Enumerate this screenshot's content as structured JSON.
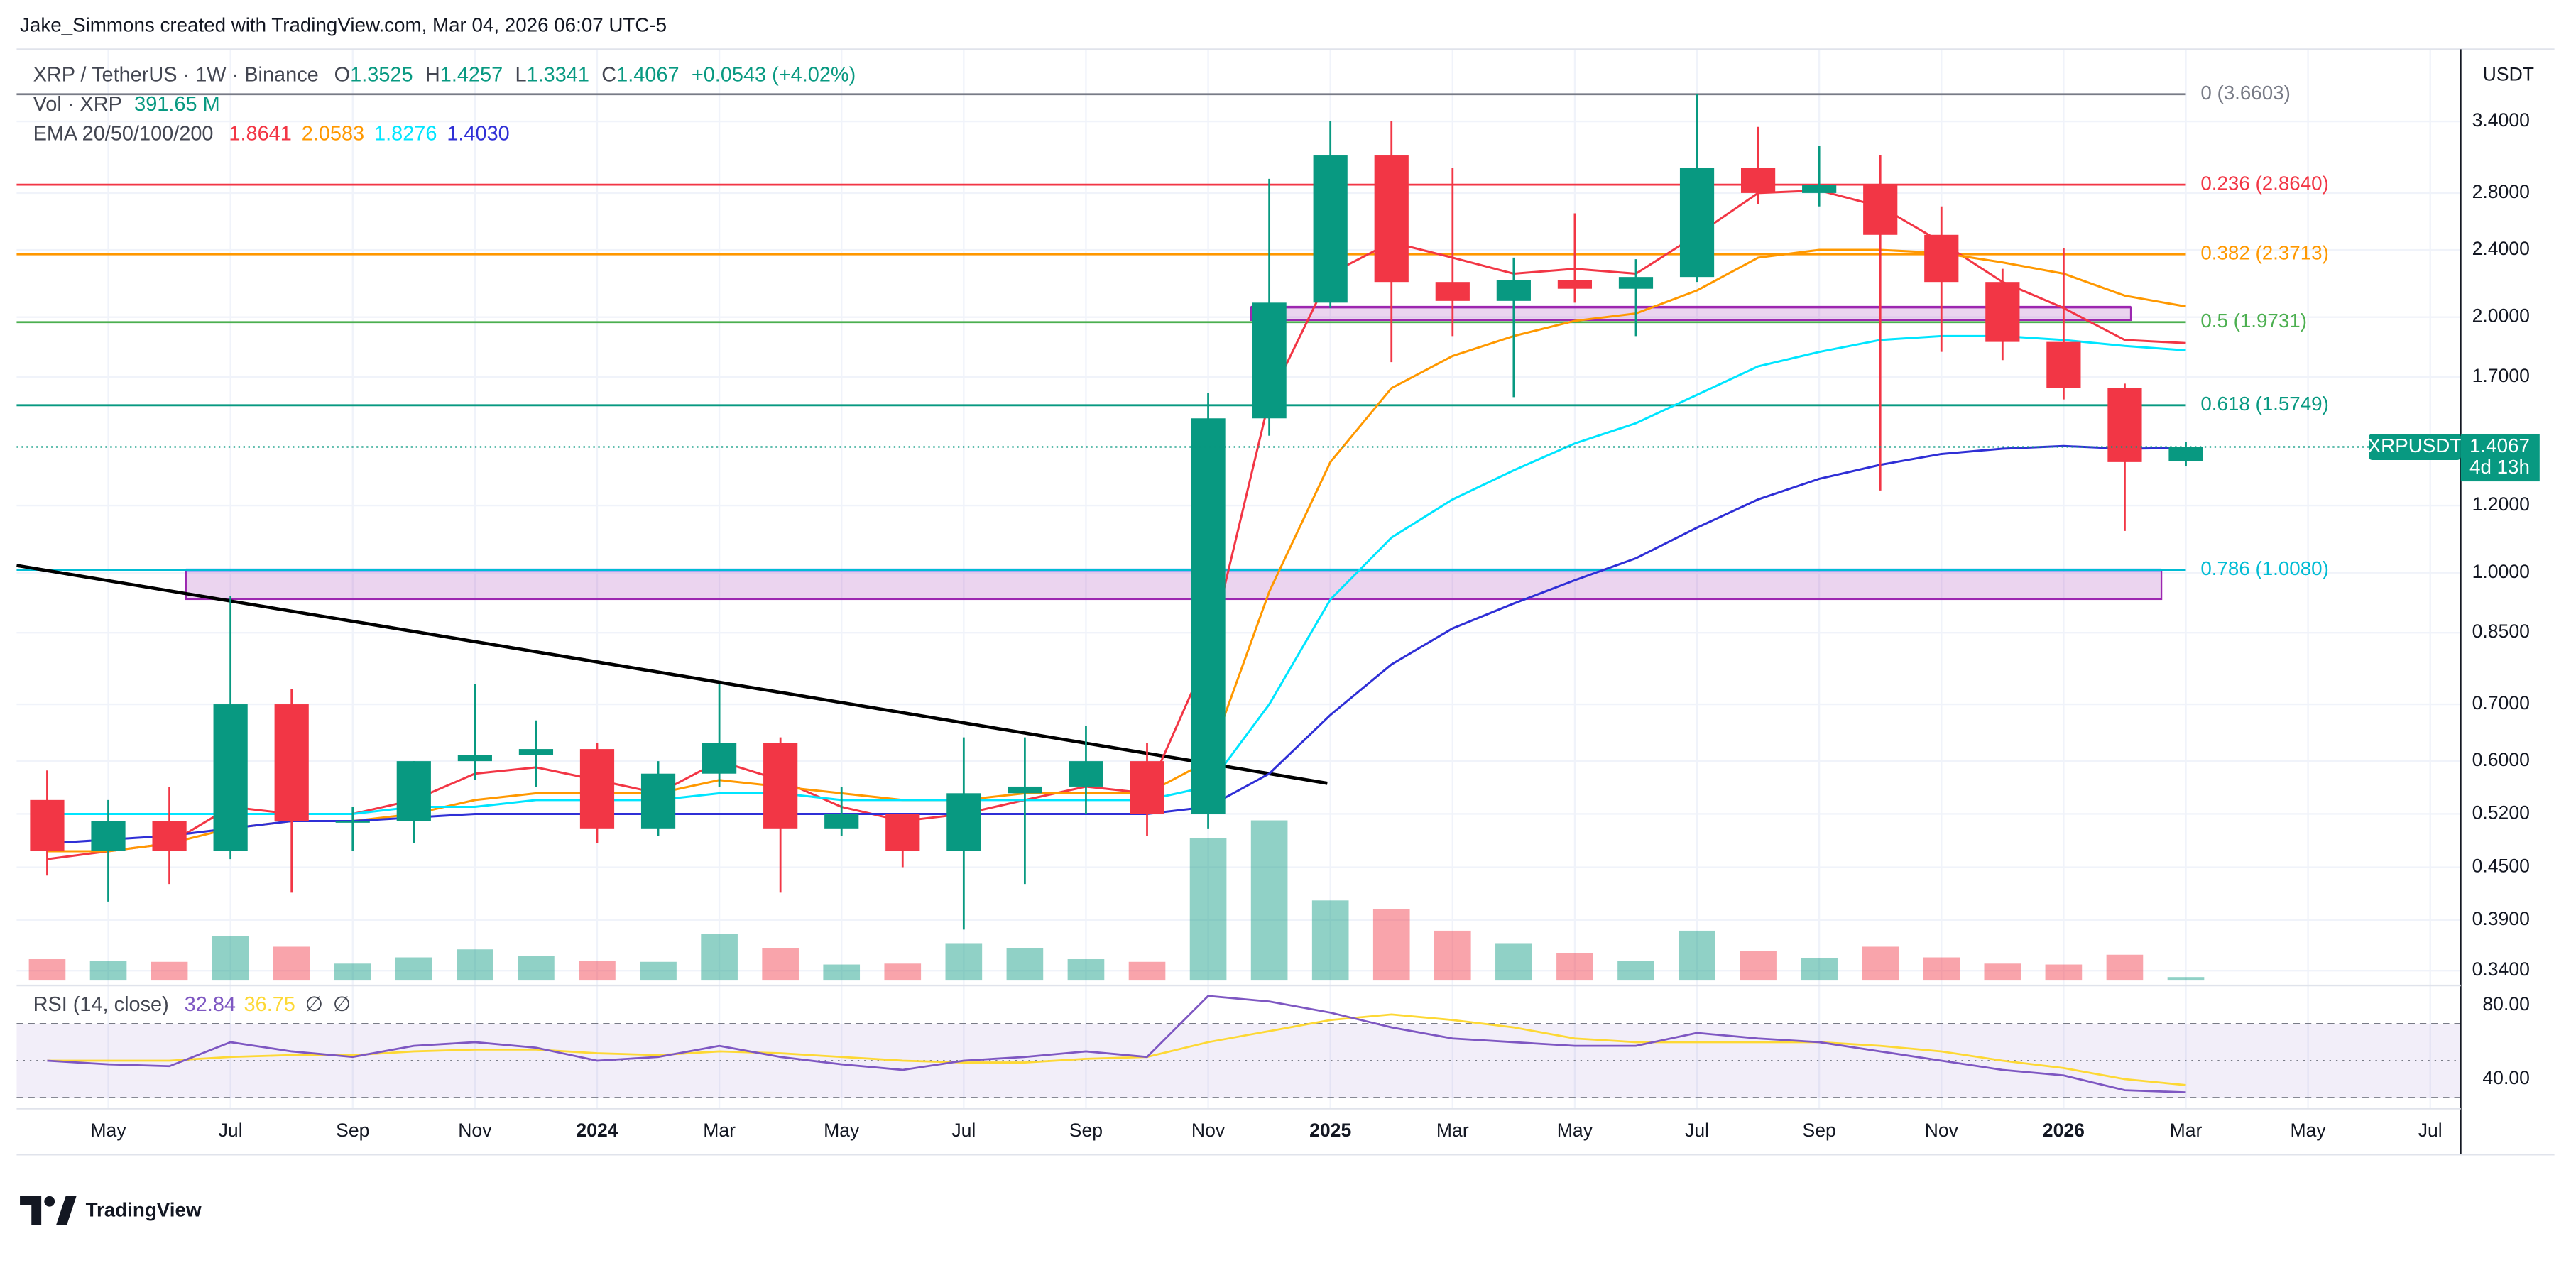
{
  "header": {
    "attribution": "Jake_Simmons created with TradingView.com, Mar 04, 2026 06:07 UTC-5"
  },
  "chart_data": {
    "type": "candlestick",
    "title": "XRP / TetherUS · 1W · Binance",
    "ohlc_legend": [
      {
        "label": "O",
        "value": "1.3525"
      },
      {
        "label": "H",
        "value": "1.4257"
      },
      {
        "label": "L",
        "value": "1.3341"
      },
      {
        "label": "C",
        "value": "1.4067"
      }
    ],
    "change": "+0.0543 (+4.02%)",
    "volume_legend": {
      "label": "Vol · XRP",
      "value": "391.65 M"
    },
    "ema_legend": "EMA 20/50/100/200",
    "currency": "USDT",
    "categories": [
      null,
      "May",
      null,
      "Jul",
      null,
      "Sep",
      null,
      "Nov",
      null,
      "2024",
      null,
      "Mar",
      null,
      "May",
      null,
      "Jul",
      null,
      "Sep",
      null,
      "Nov",
      null,
      "2025",
      null,
      "Mar",
      null,
      "May",
      null,
      "Jul",
      null,
      "Sep",
      null,
      "Nov",
      null,
      "2026",
      null,
      "Mar",
      null,
      "May",
      null,
      "Jul"
    ],
    "open": [
      0.54,
      0.47,
      0.51,
      0.47,
      0.7,
      0.51,
      0.51,
      0.6,
      0.61,
      0.62,
      0.5,
      0.58,
      0.63,
      0.5,
      0.52,
      0.47,
      0.55,
      0.56,
      0.6,
      0.52,
      1.52,
      2.08,
      3.1,
      2.2,
      2.09,
      2.21,
      2.16,
      2.23,
      3.0,
      2.8,
      2.86,
      2.5,
      2.2,
      1.87,
      1.65,
      1.3525,
      null,
      null,
      null,
      null
    ],
    "high": [
      0.585,
      0.54,
      0.56,
      0.938,
      0.73,
      0.53,
      0.6,
      0.74,
      0.67,
      0.63,
      0.6,
      0.74,
      0.64,
      0.56,
      0.52,
      0.64,
      0.64,
      0.66,
      0.63,
      1.63,
      2.91,
      3.4,
      3.4,
      3.0,
      2.35,
      2.65,
      2.34,
      3.66,
      3.35,
      3.18,
      3.1,
      2.7,
      2.28,
      2.41,
      1.67,
      1.4257,
      null,
      null,
      null,
      null
    ],
    "low": [
      0.44,
      0.41,
      0.43,
      0.46,
      0.42,
      0.47,
      0.48,
      0.57,
      0.56,
      0.48,
      0.49,
      0.56,
      0.42,
      0.49,
      0.45,
      0.38,
      0.43,
      0.52,
      0.49,
      0.5,
      1.45,
      2.05,
      1.77,
      1.9,
      1.61,
      2.08,
      1.9,
      2.2,
      2.72,
      2.7,
      1.25,
      1.82,
      1.78,
      1.6,
      1.12,
      1.3341,
      null,
      null,
      null,
      null
    ],
    "close": [
      0.47,
      0.51,
      0.47,
      0.7,
      0.51,
      0.51,
      0.6,
      0.61,
      0.62,
      0.5,
      0.58,
      0.63,
      0.5,
      0.52,
      0.47,
      0.55,
      0.56,
      0.6,
      0.52,
      1.52,
      2.08,
      3.1,
      2.2,
      2.09,
      2.21,
      2.16,
      2.23,
      3.0,
      2.8,
      2.86,
      2.5,
      2.2,
      1.87,
      1.65,
      1.35,
      1.4067,
      null,
      null,
      null,
      null
    ],
    "volume": {
      "values": [
        2400,
        2200,
        2100,
        5000,
        3800,
        1900,
        2600,
        3500,
        2800,
        2200,
        2100,
        5200,
        3600,
        1800,
        1900,
        4200,
        3600,
        2400,
        2100,
        16000,
        18000,
        9000,
        8000,
        5600,
        4200,
        3100,
        2200,
        5600,
        3300,
        2500,
        3800,
        2600,
        1900,
        1800,
        2900,
        391.65,
        null,
        null,
        null,
        null
      ],
      "ylim": [
        0,
        24000
      ],
      "up_color": "rgba(8,153,129,0.45)",
      "down_color": "rgba(242,54,69,0.45)"
    },
    "ema": [
      {
        "color": "#f23645",
        "legend_value": "1.8641",
        "values": [
          0.46,
          0.47,
          0.48,
          0.53,
          0.52,
          0.52,
          0.54,
          0.58,
          0.59,
          0.57,
          0.55,
          0.6,
          0.57,
          0.53,
          0.51,
          0.52,
          0.54,
          0.56,
          0.55,
          0.8,
          1.6,
          2.25,
          2.45,
          2.35,
          2.25,
          2.28,
          2.25,
          2.5,
          2.8,
          2.82,
          2.7,
          2.45,
          2.2,
          2.05,
          1.88,
          1.8641,
          null,
          null,
          null,
          null
        ]
      },
      {
        "color": "#ff9800",
        "legend_value": "2.0583",
        "values": [
          0.47,
          0.47,
          0.48,
          0.5,
          0.51,
          0.51,
          0.52,
          0.54,
          0.55,
          0.55,
          0.55,
          0.57,
          0.56,
          0.55,
          0.54,
          0.54,
          0.55,
          0.55,
          0.55,
          0.6,
          0.95,
          1.35,
          1.65,
          1.8,
          1.9,
          1.98,
          2.02,
          2.15,
          2.35,
          2.4,
          2.4,
          2.38,
          2.32,
          2.25,
          2.12,
          2.0583,
          null,
          null,
          null,
          null
        ]
      },
      {
        "color": "#00e5ff",
        "legend_value": "1.8276",
        "values": [
          0.52,
          0.52,
          0.52,
          0.52,
          0.52,
          0.52,
          0.53,
          0.53,
          0.54,
          0.54,
          0.54,
          0.55,
          0.55,
          0.54,
          0.54,
          0.54,
          0.54,
          0.54,
          0.54,
          0.56,
          0.7,
          0.93,
          1.1,
          1.22,
          1.32,
          1.42,
          1.5,
          1.62,
          1.75,
          1.82,
          1.88,
          1.9,
          1.9,
          1.88,
          1.85,
          1.8276,
          null,
          null,
          null,
          null
        ]
      },
      {
        "color": "#2f2fd6",
        "legend_value": "1.4030",
        "values": [
          0.48,
          0.485,
          0.49,
          0.5,
          0.51,
          0.51,
          0.515,
          0.52,
          0.52,
          0.52,
          0.52,
          0.52,
          0.52,
          0.52,
          0.52,
          0.52,
          0.52,
          0.52,
          0.52,
          0.53,
          0.58,
          0.68,
          0.78,
          0.86,
          0.92,
          0.98,
          1.04,
          1.13,
          1.22,
          1.29,
          1.34,
          1.38,
          1.4,
          1.41,
          1.4,
          1.403,
          null,
          null,
          null,
          null
        ]
      }
    ],
    "ylim": [
      0.331,
      4.08
    ],
    "yticks": [
      {
        "value": 3.4,
        "label": "3.4000"
      },
      {
        "value": 2.8,
        "label": "2.8000"
      },
      {
        "value": 2.4,
        "label": "2.4000"
      },
      {
        "value": 2.0,
        "label": "2.0000"
      },
      {
        "value": 1.7,
        "label": "1.7000"
      },
      {
        "value": 1.2,
        "label": "1.2000"
      },
      {
        "value": 1.0,
        "label": "1.0000"
      },
      {
        "value": 0.85,
        "label": "0.8500"
      },
      {
        "value": 0.7,
        "label": "0.7000"
      },
      {
        "value": 0.6,
        "label": "0.6000"
      },
      {
        "value": 0.52,
        "label": "0.5200"
      },
      {
        "value": 0.45,
        "label": "0.4500"
      },
      {
        "value": 0.39,
        "label": "0.3900"
      },
      {
        "value": 0.34,
        "label": "0.3400"
      }
    ],
    "log_scale": true,
    "grid": true,
    "up_color": "#089981",
    "down_color": "#f23645",
    "fib_levels": [
      {
        "label": "0 (3.6603)",
        "value": 3.6603,
        "color": "#787b86"
      },
      {
        "label": "0.236 (2.8640)",
        "value": 2.864,
        "color": "#f23645"
      },
      {
        "label": "0.382 (2.3713)",
        "value": 2.3713,
        "color": "#ff9800"
      },
      {
        "label": "0.5 (1.9731)",
        "value": 1.9731,
        "color": "#4caf50"
      },
      {
        "label": "0.618 (1.5749)",
        "value": 1.5749,
        "color": "#089981"
      },
      {
        "label": "0.786 (1.0080)",
        "value": 1.008,
        "color": "#00bcd4"
      }
    ],
    "zones": [
      {
        "top": 1.008,
        "bottom": 0.931,
        "color": "#9c27b0",
        "edge": "#2962ff"
      },
      {
        "top": 2.055,
        "bottom": 1.984,
        "color": "#9c27b0",
        "edge": "#9c27b0"
      }
    ],
    "trendline": {
      "values": [
        1.02,
        0.565
      ],
      "color": "#000000"
    },
    "price_tag": {
      "symbol": "XRPUSDT",
      "countdown": "4d 13h",
      "color": "#089981"
    },
    "rsi": {
      "title": "RSI (14, close)",
      "value_label": "32.84",
      "ma_label": "36.75",
      "extras": [
        "∅",
        "∅"
      ],
      "color": "#7e57c2",
      "ma_color": "#fdd835",
      "values": [
        50,
        48,
        47,
        60,
        55,
        52,
        58,
        60,
        57,
        50,
        52,
        58,
        52,
        48,
        45,
        50,
        52,
        55,
        52,
        85,
        82,
        76,
        68,
        62,
        60,
        58,
        58,
        65,
        62,
        60,
        55,
        50,
        45,
        42,
        34,
        32.84,
        null,
        null,
        null,
        null
      ],
      "ma_values": [
        50,
        50,
        50,
        52,
        53,
        53,
        55,
        56,
        56,
        54,
        53,
        55,
        54,
        52,
        50,
        49,
        49,
        51,
        52,
        60,
        66,
        72,
        75,
        72,
        68,
        62,
        60,
        60,
        60,
        60,
        58,
        55,
        50,
        46,
        40,
        36.75,
        null,
        null,
        null,
        null
      ],
      "ylim": [
        26.7,
        90.7
      ],
      "yticks": [
        {
          "value": 80,
          "label": "80.00"
        },
        {
          "value": 40,
          "label": "40.00"
        }
      ],
      "bands": [
        70,
        50,
        30
      ]
    }
  },
  "footer": {
    "brand": "TradingView"
  }
}
